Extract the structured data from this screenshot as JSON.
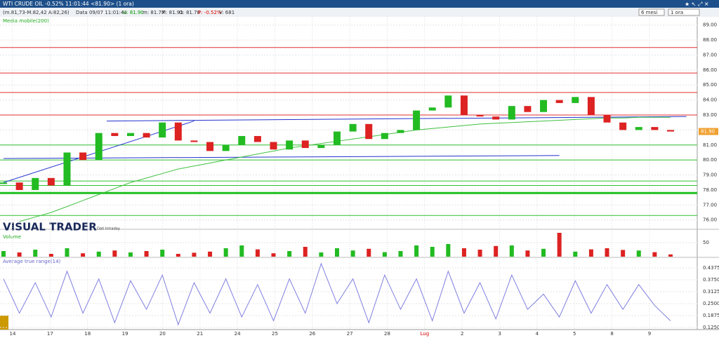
{
  "header": {
    "title": "WTI CRUDE OIL -0.52% 11:01:44 <81.90> (1 ora)"
  },
  "info": {
    "range": "(m.81,73-M.82,42 A:82,26)",
    "date": "Data 09/07 11:01:44",
    "last": "U: 81.90",
    "min": "m: 81.77",
    "max": "M: 81.91",
    "open": "O: 81.78",
    "change": "P: -0.52%",
    "volume": "V: 681"
  },
  "controls": {
    "period": "6 mesi",
    "interval": "1 ora"
  },
  "brand": {
    "name": "VISUAL TRADER",
    "note": "Dati Intraday"
  },
  "price_panel": {
    "label": "Media mobile(200)",
    "ylim": [
      75.8,
      89.5
    ],
    "yticks": [
      {
        "value": 76,
        "label": "76.00"
      },
      {
        "value": 77,
        "label": "77.00"
      },
      {
        "value": 78,
        "label": "78.00"
      },
      {
        "value": 79,
        "label": "79.00"
      },
      {
        "value": 80,
        "label": "80.00"
      },
      {
        "value": 81,
        "label": "81.00"
      },
      {
        "value": 82,
        "label": "82.00"
      },
      {
        "value": 83,
        "label": "83.00"
      },
      {
        "value": 84,
        "label": "84.00"
      },
      {
        "value": 85,
        "label": "85.00"
      },
      {
        "value": 86,
        "label": "86.00"
      },
      {
        "value": 87,
        "label": "87.00"
      },
      {
        "value": 88,
        "label": "88.00"
      },
      {
        "value": 89,
        "label": "89.00"
      }
    ],
    "last_price": {
      "value": 81.9,
      "label": "81.90"
    },
    "open": [
      78.4,
      78.5,
      78.0,
      78.8,
      78.3,
      80.5,
      80.0,
      81.8,
      81.6,
      81.8,
      81.5,
      82.5,
      81.3,
      81.2,
      80.6,
      81.0,
      81.6,
      81.2,
      80.7,
      81.3,
      80.8,
      81.0,
      81.9,
      82.4,
      81.4,
      81.8,
      82.0,
      83.3,
      83.5,
      84.3,
      83.0,
      82.9,
      82.7,
      83.6,
      83.2,
      84.0,
      83.8,
      84.2,
      83.0,
      82.5,
      82.0,
      82.2,
      82.0
    ],
    "close": [
      78.5,
      78.0,
      78.8,
      78.3,
      80.5,
      80.0,
      81.8,
      81.6,
      81.8,
      81.5,
      82.5,
      81.3,
      81.2,
      80.6,
      81.0,
      81.6,
      81.2,
      80.7,
      81.3,
      80.8,
      81.0,
      81.9,
      82.4,
      81.4,
      81.8,
      82.0,
      83.3,
      83.5,
      84.3,
      83.0,
      82.9,
      82.7,
      83.6,
      83.2,
      84.0,
      83.8,
      84.2,
      83.0,
      82.5,
      82.0,
      82.2,
      82.0,
      81.9
    ],
    "ma200": [
      null,
      75.9,
      76.2,
      76.5,
      76.9,
      77.3,
      77.7,
      78.1,
      78.5,
      78.8,
      79.1,
      79.4,
      79.6,
      79.8,
      80.0,
      80.2,
      80.4,
      80.6,
      80.8,
      80.95,
      81.1,
      81.25,
      81.4,
      81.55,
      81.7,
      81.85,
      82.0,
      82.1,
      82.2,
      82.3,
      82.4,
      82.45,
      82.5,
      82.55,
      82.6,
      82.65,
      82.7,
      82.75,
      82.8,
      82.8,
      82.85,
      82.85,
      82.85
    ],
    "levels": [
      {
        "value": 87.5,
        "color": "#e03030"
      },
      {
        "value": 85.8,
        "color": "#e03030"
      },
      {
        "value": 84.5,
        "color": "#e03030"
      },
      {
        "value": 83.0,
        "color": "#e03030"
      },
      {
        "value": 81.0,
        "color": "#30c030"
      },
      {
        "value": 80.0,
        "color": "#30c030"
      },
      {
        "value": 78.6,
        "color": "#30c030"
      },
      {
        "value": 78.3,
        "color": "#30c030"
      },
      {
        "value": 77.8,
        "color": "#20c020"
      },
      {
        "value": 76.3,
        "color": "#30c030"
      }
    ],
    "trendlines": [
      {
        "from": [
          0,
          78.5
        ],
        "to": [
          12,
          82.6
        ]
      },
      {
        "from": [
          6.5,
          82.6
        ],
        "to": [
          43,
          82.9
        ]
      },
      {
        "from": [
          0,
          80.1
        ],
        "to": [
          35,
          80.3
        ]
      }
    ]
  },
  "volume_panel": {
    "label": "Volume",
    "ylim": [
      0,
      90
    ],
    "yticks": [
      50
    ],
    "values": [
      20,
      15,
      25,
      10,
      30,
      12,
      18,
      22,
      15,
      20,
      25,
      10,
      14,
      18,
      30,
      40,
      26,
      12,
      20,
      35,
      15,
      30,
      22,
      28,
      16,
      20,
      40,
      35,
      45,
      30,
      25,
      38,
      40,
      22,
      28,
      85,
      18,
      26,
      30,
      24,
      22,
      16,
      8
    ]
  },
  "atr_panel": {
    "label": "Average true range(14)",
    "ylim": [
      0.114,
      0.489
    ],
    "yticks": [
      {
        "value": 0.125,
        "label": "0.1250"
      },
      {
        "value": 0.1875,
        "label": "0.1875"
      },
      {
        "value": 0.25,
        "label": "0.2500"
      },
      {
        "value": 0.3125,
        "label": "0.3125"
      },
      {
        "value": 0.375,
        "label": "0.3750"
      },
      {
        "value": 0.4375,
        "label": "0.4375"
      }
    ],
    "values": [
      0.38,
      0.2,
      0.36,
      0.18,
      0.42,
      0.2,
      0.38,
      0.15,
      0.37,
      0.22,
      0.4,
      0.14,
      0.36,
      0.2,
      0.38,
      0.18,
      0.35,
      0.16,
      0.38,
      0.2,
      0.46,
      0.25,
      0.38,
      0.15,
      0.4,
      0.22,
      0.38,
      0.16,
      0.42,
      0.2,
      0.36,
      0.17,
      0.4,
      0.22,
      0.3,
      0.18,
      0.37,
      0.2,
      0.35,
      0.22,
      0.35,
      0.24,
      0.16
    ]
  },
  "x_axis": {
    "labels": [
      "14",
      "17",
      "18",
      "19",
      "20",
      "21",
      "24",
      "25",
      "26",
      "27",
      "28",
      "Lug",
      "2",
      "3",
      "4",
      "5",
      "8",
      "9"
    ]
  }
}
